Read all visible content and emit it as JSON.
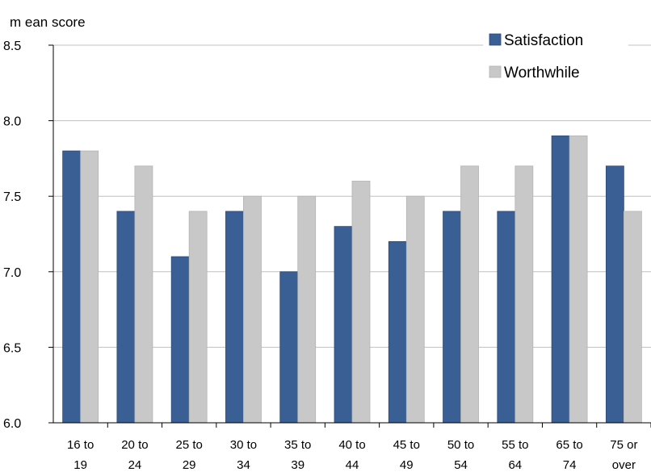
{
  "chart_data": {
    "type": "bar",
    "ylabel": "m ean score",
    "ylim": [
      6.0,
      8.5
    ],
    "yticks": [
      "6.0",
      "6.5",
      "7.0",
      "7.5",
      "8.0",
      "8.5"
    ],
    "grid": true,
    "legend_position": "top-right",
    "categories": [
      [
        "16 to",
        "19"
      ],
      [
        "20 to",
        "24"
      ],
      [
        "25 to",
        "29"
      ],
      [
        "30 to",
        "34"
      ],
      [
        "35 to",
        "39"
      ],
      [
        "40 to",
        "44"
      ],
      [
        "45 to",
        "49"
      ],
      [
        "50 to",
        "54"
      ],
      [
        "55 to",
        "64"
      ],
      [
        "65 to",
        "74"
      ],
      [
        "75 or",
        "over"
      ]
    ],
    "series": [
      {
        "name": "Satisfaction",
        "color": "#3a5f94",
        "values": [
          7.8,
          7.4,
          7.1,
          7.4,
          7.0,
          7.3,
          7.2,
          7.4,
          7.4,
          7.9,
          7.7
        ]
      },
      {
        "name": "Worthwhile",
        "color": "#c8c8c8",
        "values": [
          7.8,
          7.7,
          7.4,
          7.5,
          7.5,
          7.6,
          7.5,
          7.7,
          7.7,
          7.9,
          7.4
        ]
      }
    ]
  }
}
